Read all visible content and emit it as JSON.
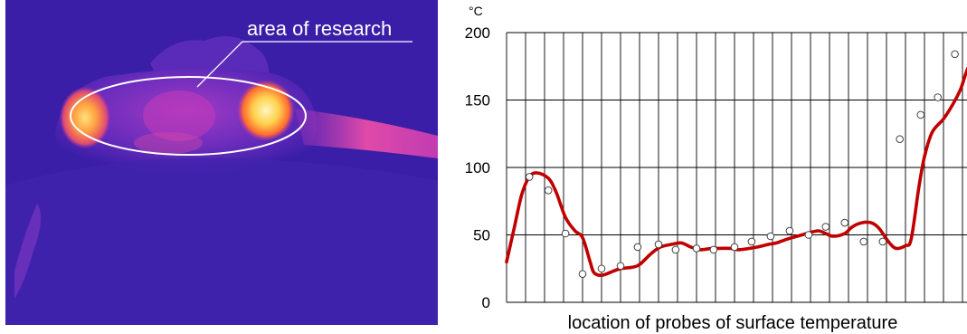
{
  "thermal_image": {
    "annotation": "area of research",
    "colors": {
      "background": "#3a1ea8",
      "hot": "#ffe680",
      "warm": "#ff7a3c",
      "mid": "#b43cc8",
      "ellipse": "#ffffff"
    }
  },
  "chart_data": {
    "type": "line",
    "title": "",
    "y_unit": "°C",
    "xlabel": "location of probes of surface temperature",
    "ylabel": "",
    "ylim": [
      0,
      200
    ],
    "yticks": [
      0,
      50,
      100,
      150,
      200
    ],
    "x_grid_divisions": 24,
    "grid": true,
    "line_color": "#c00000",
    "marker_color": "#ffffff",
    "curve": [
      [
        0,
        30
      ],
      [
        0.4,
        55
      ],
      [
        0.8,
        80
      ],
      [
        1.2,
        93
      ],
      [
        1.6,
        96
      ],
      [
        2.2,
        92
      ],
      [
        2.6,
        82
      ],
      [
        3.1,
        63
      ],
      [
        3.6,
        53
      ],
      [
        4.0,
        48
      ],
      [
        4.4,
        30
      ],
      [
        4.6,
        22
      ],
      [
        5.0,
        20
      ],
      [
        5.6,
        23
      ],
      [
        6.0,
        25
      ],
      [
        6.6,
        26
      ],
      [
        7.0,
        28
      ],
      [
        7.6,
        36
      ],
      [
        8.1,
        41
      ],
      [
        8.7,
        43
      ],
      [
        9.2,
        44
      ],
      [
        9.7,
        41
      ],
      [
        10.2,
        39
      ],
      [
        10.8,
        40
      ],
      [
        11.2,
        40
      ],
      [
        11.8,
        40
      ],
      [
        12.2,
        39
      ],
      [
        12.8,
        40
      ],
      [
        13.2,
        41
      ],
      [
        13.8,
        43
      ],
      [
        14.2,
        44
      ],
      [
        14.8,
        47
      ],
      [
        15.3,
        49
      ],
      [
        15.8,
        51
      ],
      [
        16.4,
        53
      ],
      [
        16.8,
        51
      ],
      [
        17.2,
        49
      ],
      [
        17.8,
        51
      ],
      [
        18.2,
        56
      ],
      [
        18.7,
        59
      ],
      [
        19.2,
        59
      ],
      [
        19.6,
        55
      ],
      [
        20.1,
        45
      ],
      [
        20.5,
        40
      ],
      [
        21.0,
        42
      ],
      [
        21.3,
        47
      ],
      [
        21.7,
        85
      ],
      [
        22.0,
        108
      ],
      [
        22.4,
        126
      ],
      [
        23.0,
        136
      ],
      [
        23.5,
        147
      ],
      [
        23.9,
        158
      ],
      [
        24.3,
        174
      ],
      [
        24.8,
        184
      ],
      [
        25.3,
        186
      ],
      [
        25.6,
        187
      ]
    ],
    "probes": [
      [
        1.2,
        93
      ],
      [
        2.2,
        83
      ],
      [
        3.1,
        51
      ],
      [
        4.0,
        21
      ],
      [
        5.0,
        25
      ],
      [
        6.0,
        27
      ],
      [
        6.9,
        41
      ],
      [
        8.0,
        43
      ],
      [
        8.9,
        39
      ],
      [
        10.0,
        40
      ],
      [
        10.9,
        39
      ],
      [
        12.0,
        41
      ],
      [
        12.9,
        45
      ],
      [
        13.9,
        49
      ],
      [
        14.9,
        53
      ],
      [
        15.9,
        50
      ],
      [
        16.8,
        56
      ],
      [
        17.8,
        59
      ],
      [
        18.8,
        45
      ],
      [
        19.8,
        45
      ],
      [
        20.7,
        121
      ],
      [
        21.8,
        139
      ],
      [
        22.7,
        152
      ],
      [
        23.6,
        184
      ]
    ]
  }
}
